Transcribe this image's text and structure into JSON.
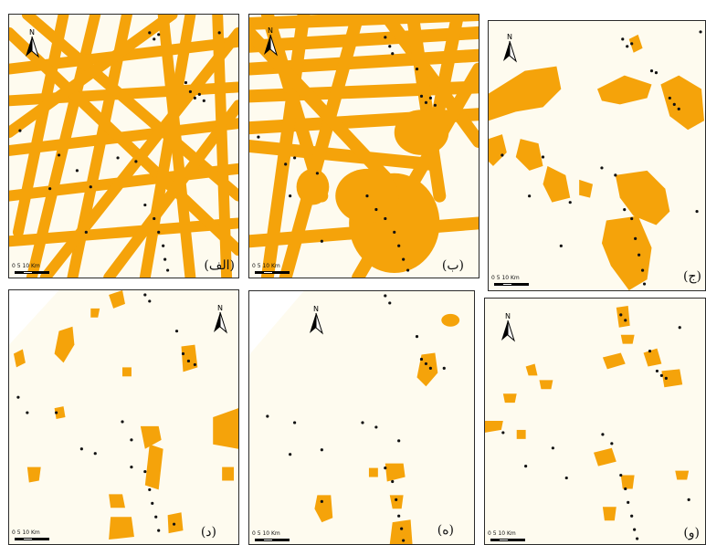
{
  "colors": {
    "background": "#fefbef",
    "habitat": "#f5a30a",
    "points": "#111111",
    "border": "#2b2b2b"
  },
  "icons": {
    "north": "north-arrow-icon",
    "scale": "scale-bar"
  },
  "panels": [
    {
      "id": "alef",
      "label": "(الف)",
      "north_label": "N",
      "scale_text": "0  5  10 Km",
      "pattern": "roads-network"
    },
    {
      "id": "be",
      "label": "(ب)",
      "north_label": "N",
      "scale_text": "0  5  10 Km",
      "pattern": "roads-network-dense"
    },
    {
      "id": "jim",
      "label": "(ج)",
      "north_label": "N",
      "scale_text": "0  5  10 Km",
      "pattern": "patches-large"
    },
    {
      "id": "dal",
      "label": "(د)",
      "north_label": "N",
      "scale_text": "0  5  10 Km",
      "pattern": "patches-scattered"
    },
    {
      "id": "he",
      "label": "(ه)",
      "north_label": "N",
      "scale_text": "0  5  10 Km",
      "pattern": "patches-sparse"
    },
    {
      "id": "vav",
      "label": "(و)",
      "north_label": "N",
      "scale_text": "0  5  10 Km",
      "pattern": "patches-small"
    }
  ]
}
